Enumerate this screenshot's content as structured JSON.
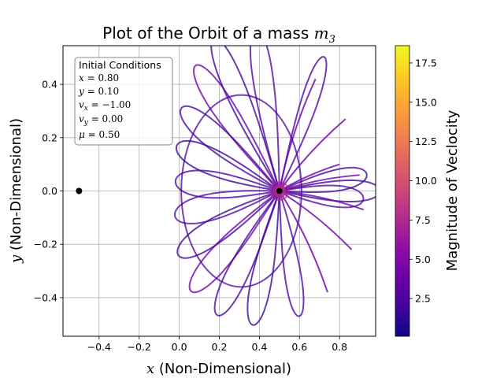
{
  "chart_data": {
    "type": "line",
    "title_text": "Plot of the Orbit of a mass ",
    "title_math": "m",
    "title_sub": "3",
    "xlabel_math": "x",
    "xlabel_text": " (Non-Dimensional)",
    "ylabel_math": "y",
    "ylabel_text": " (Non-Dimensional)",
    "xlim": [
      -0.58,
      0.98
    ],
    "ylim": [
      -0.545,
      0.545
    ],
    "xticks": [
      -0.4,
      -0.2,
      0.0,
      0.2,
      0.4,
      0.6,
      0.8
    ],
    "xtick_labels": [
      "−0.4",
      "−0.2",
      "0.0",
      "0.2",
      "0.4",
      "0.6",
      "0.8"
    ],
    "yticks": [
      -0.4,
      -0.2,
      0.0,
      0.2,
      0.4
    ],
    "ytick_labels": [
      "−0.4",
      "−0.2",
      "0.0",
      "0.2",
      "0.4"
    ],
    "grid": true,
    "colorbar": {
      "label": "Magnitude of Veclocity",
      "range": [
        0.1,
        18.6
      ],
      "colormap": "plasma",
      "ticks": [
        2.5,
        5.0,
        7.5,
        10.0,
        12.5,
        15.0,
        17.5
      ],
      "tick_labels": [
        "2.5",
        "5.0",
        "7.5",
        "10.0",
        "12.5",
        "15.0",
        "17.5"
      ]
    },
    "primaries": [
      {
        "x": -0.5,
        "y": 0.0
      },
      {
        "x": 0.5,
        "y": 0.0
      }
    ],
    "annotation": {
      "title": "Initial Conditions",
      "lines": [
        "x = 0.80",
        "y = 0.10",
        "vx = −1.00",
        "vy = 0.00",
        "μ = 0.50"
      ]
    },
    "orbit_petals": [
      {
        "a": 0.5,
        "dir_deg": 0,
        "b": 0.08
      },
      {
        "a": 0.55,
        "dir_deg": 66,
        "b": 0.08
      },
      {
        "a": 0.62,
        "dir_deg": 101,
        "b": 0.1
      },
      {
        "a": 0.66,
        "dir_deg": 120,
        "b": 0.1
      },
      {
        "a": 0.63,
        "dir_deg": 132,
        "b": 0.1
      },
      {
        "a": 0.58,
        "dir_deg": 148,
        "b": 0.1
      },
      {
        "a": 0.54,
        "dir_deg": 162,
        "b": 0.1
      },
      {
        "a": 0.52,
        "dir_deg": 176,
        "b": 0.1
      },
      {
        "a": 0.53,
        "dir_deg": 190,
        "b": 0.1
      },
      {
        "a": 0.56,
        "dir_deg": 205,
        "b": 0.1
      },
      {
        "a": 0.58,
        "dir_deg": 220,
        "b": 0.1
      },
      {
        "a": 0.56,
        "dir_deg": 236,
        "b": 0.1
      },
      {
        "a": 0.52,
        "dir_deg": 255,
        "b": 0.1
      },
      {
        "a": 0.48,
        "dir_deg": 282,
        "b": 0.08
      },
      {
        "a": 0.42,
        "dir_deg": 356,
        "b": 0.08
      },
      {
        "a": 0.44,
        "dir_deg": 8,
        "b": 0.08
      }
    ],
    "orbit_spikes": [
      {
        "x": 0.9,
        "y": 0.06
      },
      {
        "x": 0.92,
        "y": -0.07
      },
      {
        "x": 0.8,
        "y": 0.1
      },
      {
        "x": 0.83,
        "y": 0.27
      },
      {
        "x": 0.86,
        "y": -0.22
      },
      {
        "x": 0.68,
        "y": 0.42
      },
      {
        "x": 0.74,
        "y": -0.38
      }
    ],
    "big_ellipse": {
      "cx": 0.31,
      "cy": 0.0,
      "rx": 0.3,
      "ry": 0.36
    }
  }
}
